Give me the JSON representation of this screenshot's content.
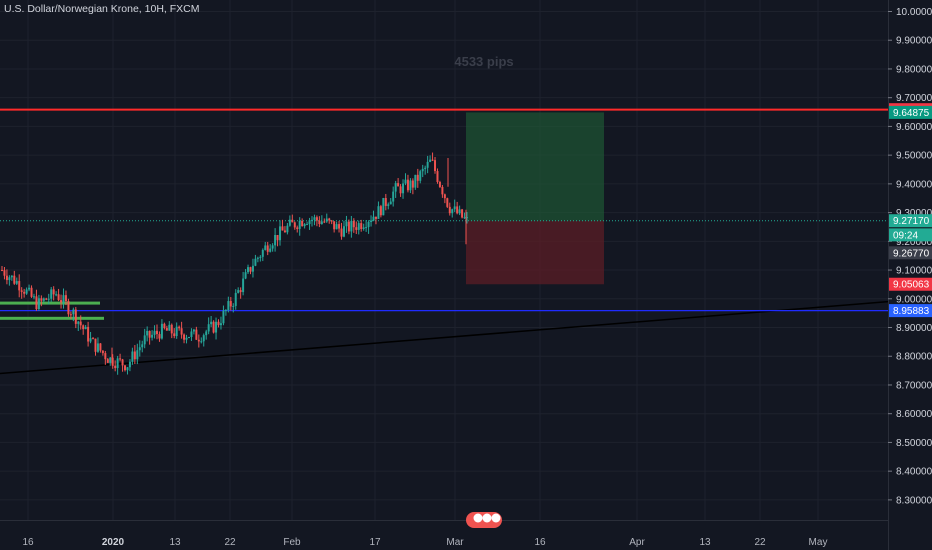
{
  "chart_data": {
    "type": "candlestick",
    "title": "U.S. Dollar/Norwegian Krone, 10H, FXCM",
    "ylim": [
      8.23,
      10.04
    ],
    "y_ticks": [
      "10.00000",
      "9.90000",
      "9.80000",
      "9.70000",
      "9.60000",
      "9.50000",
      "9.40000",
      "9.30000",
      "9.20000",
      "9.10000",
      "9.00000",
      "8.90000",
      "8.80000",
      "8.70000",
      "8.60000",
      "8.50000",
      "8.40000",
      "8.30000"
    ],
    "x_ticks": [
      {
        "label": "16",
        "bold": false
      },
      {
        "label": "2020",
        "bold": true
      },
      {
        "label": "13",
        "bold": false
      },
      {
        "label": "22",
        "bold": false
      },
      {
        "label": "Feb",
        "bold": false
      },
      {
        "label": "17",
        "bold": false
      },
      {
        "label": "Mar",
        "bold": false
      },
      {
        "label": "16",
        "bold": false
      },
      {
        "label": "Apr",
        "bold": false
      },
      {
        "label": "13",
        "bold": false
      },
      {
        "label": "22",
        "bold": false
      },
      {
        "label": "May",
        "bold": false
      }
    ],
    "price_path": [
      [
        9.1,
        9.12
      ],
      [
        9.05,
        9.06
      ],
      [
        8.98,
        9.05
      ],
      [
        9.02,
        8.96
      ],
      [
        8.95,
        8.93
      ],
      [
        8.85,
        8.88
      ],
      [
        8.79,
        8.82
      ],
      [
        8.77,
        8.78
      ],
      [
        8.86,
        8.85
      ],
      [
        8.89,
        8.9
      ],
      [
        8.88,
        8.87
      ],
      [
        8.87,
        8.86
      ],
      [
        8.91,
        8.92
      ],
      [
        9.0,
        8.98
      ],
      [
        9.12,
        9.1
      ],
      [
        9.2,
        9.22
      ],
      [
        9.25,
        9.26
      ],
      [
        9.28,
        9.24
      ],
      [
        9.27,
        9.28
      ],
      [
        9.24,
        9.26
      ],
      [
        9.26,
        9.28
      ],
      [
        9.3,
        9.31
      ],
      [
        9.38,
        9.36
      ],
      [
        9.4,
        9.41
      ],
      [
        9.48,
        9.46
      ],
      [
        9.32,
        9.3
      ],
      [
        9.27,
        9.25
      ]
    ],
    "price_marks": [
      8.77,
      9.49,
      9.19
    ],
    "horizontal_lines": [
      {
        "value": 9.65821,
        "color": "#ff2a2a",
        "label": "9.65821"
      },
      {
        "value": 8.95883,
        "color": "#1f2bff",
        "label": "8.95883"
      }
    ],
    "support_zones": [
      {
        "value": 8.985,
        "color": "#4caf50"
      },
      {
        "value": 8.932,
        "color": "#4caf50"
      }
    ],
    "trendline": {
      "from": 8.74,
      "to": 8.99,
      "color": "#000000"
    },
    "position": {
      "entry": 9.2717,
      "target": 9.64875,
      "stop": 9.05063,
      "profit_color": "#1e5a35",
      "loss_color": "#5b1e26"
    },
    "price_tags": [
      {
        "label": "9.65821",
        "value": 9.65821,
        "bg": "#f23645",
        "fg": "#ffffff"
      },
      {
        "label": "9.64875",
        "value": 9.64875,
        "bg": "#089981",
        "fg": "#ffffff"
      },
      {
        "label": "9.27170",
        "value": 9.2717,
        "bg": "#22ab94",
        "fg": "#ffffff"
      },
      {
        "label": "09:24",
        "value": 9.2225,
        "bg": "#22ab94",
        "fg": "#ffffff"
      },
      {
        "label": "9.26770",
        "value": 9.16,
        "bg": "#3a3e4a",
        "fg": "#ffffff"
      },
      {
        "label": "9.05063",
        "value": 9.05063,
        "bg": "#f23645",
        "fg": "#ffffff"
      },
      {
        "label": "8.95883",
        "value": 8.95883,
        "bg": "#2962ff",
        "fg": "#ffffff"
      }
    ],
    "annotation": "4533 pips",
    "colors": {
      "up": "#26a69a",
      "down": "#ef5350",
      "background": "#131722",
      "grid": "#1e222d",
      "current_price_line": "#22ab94"
    }
  }
}
